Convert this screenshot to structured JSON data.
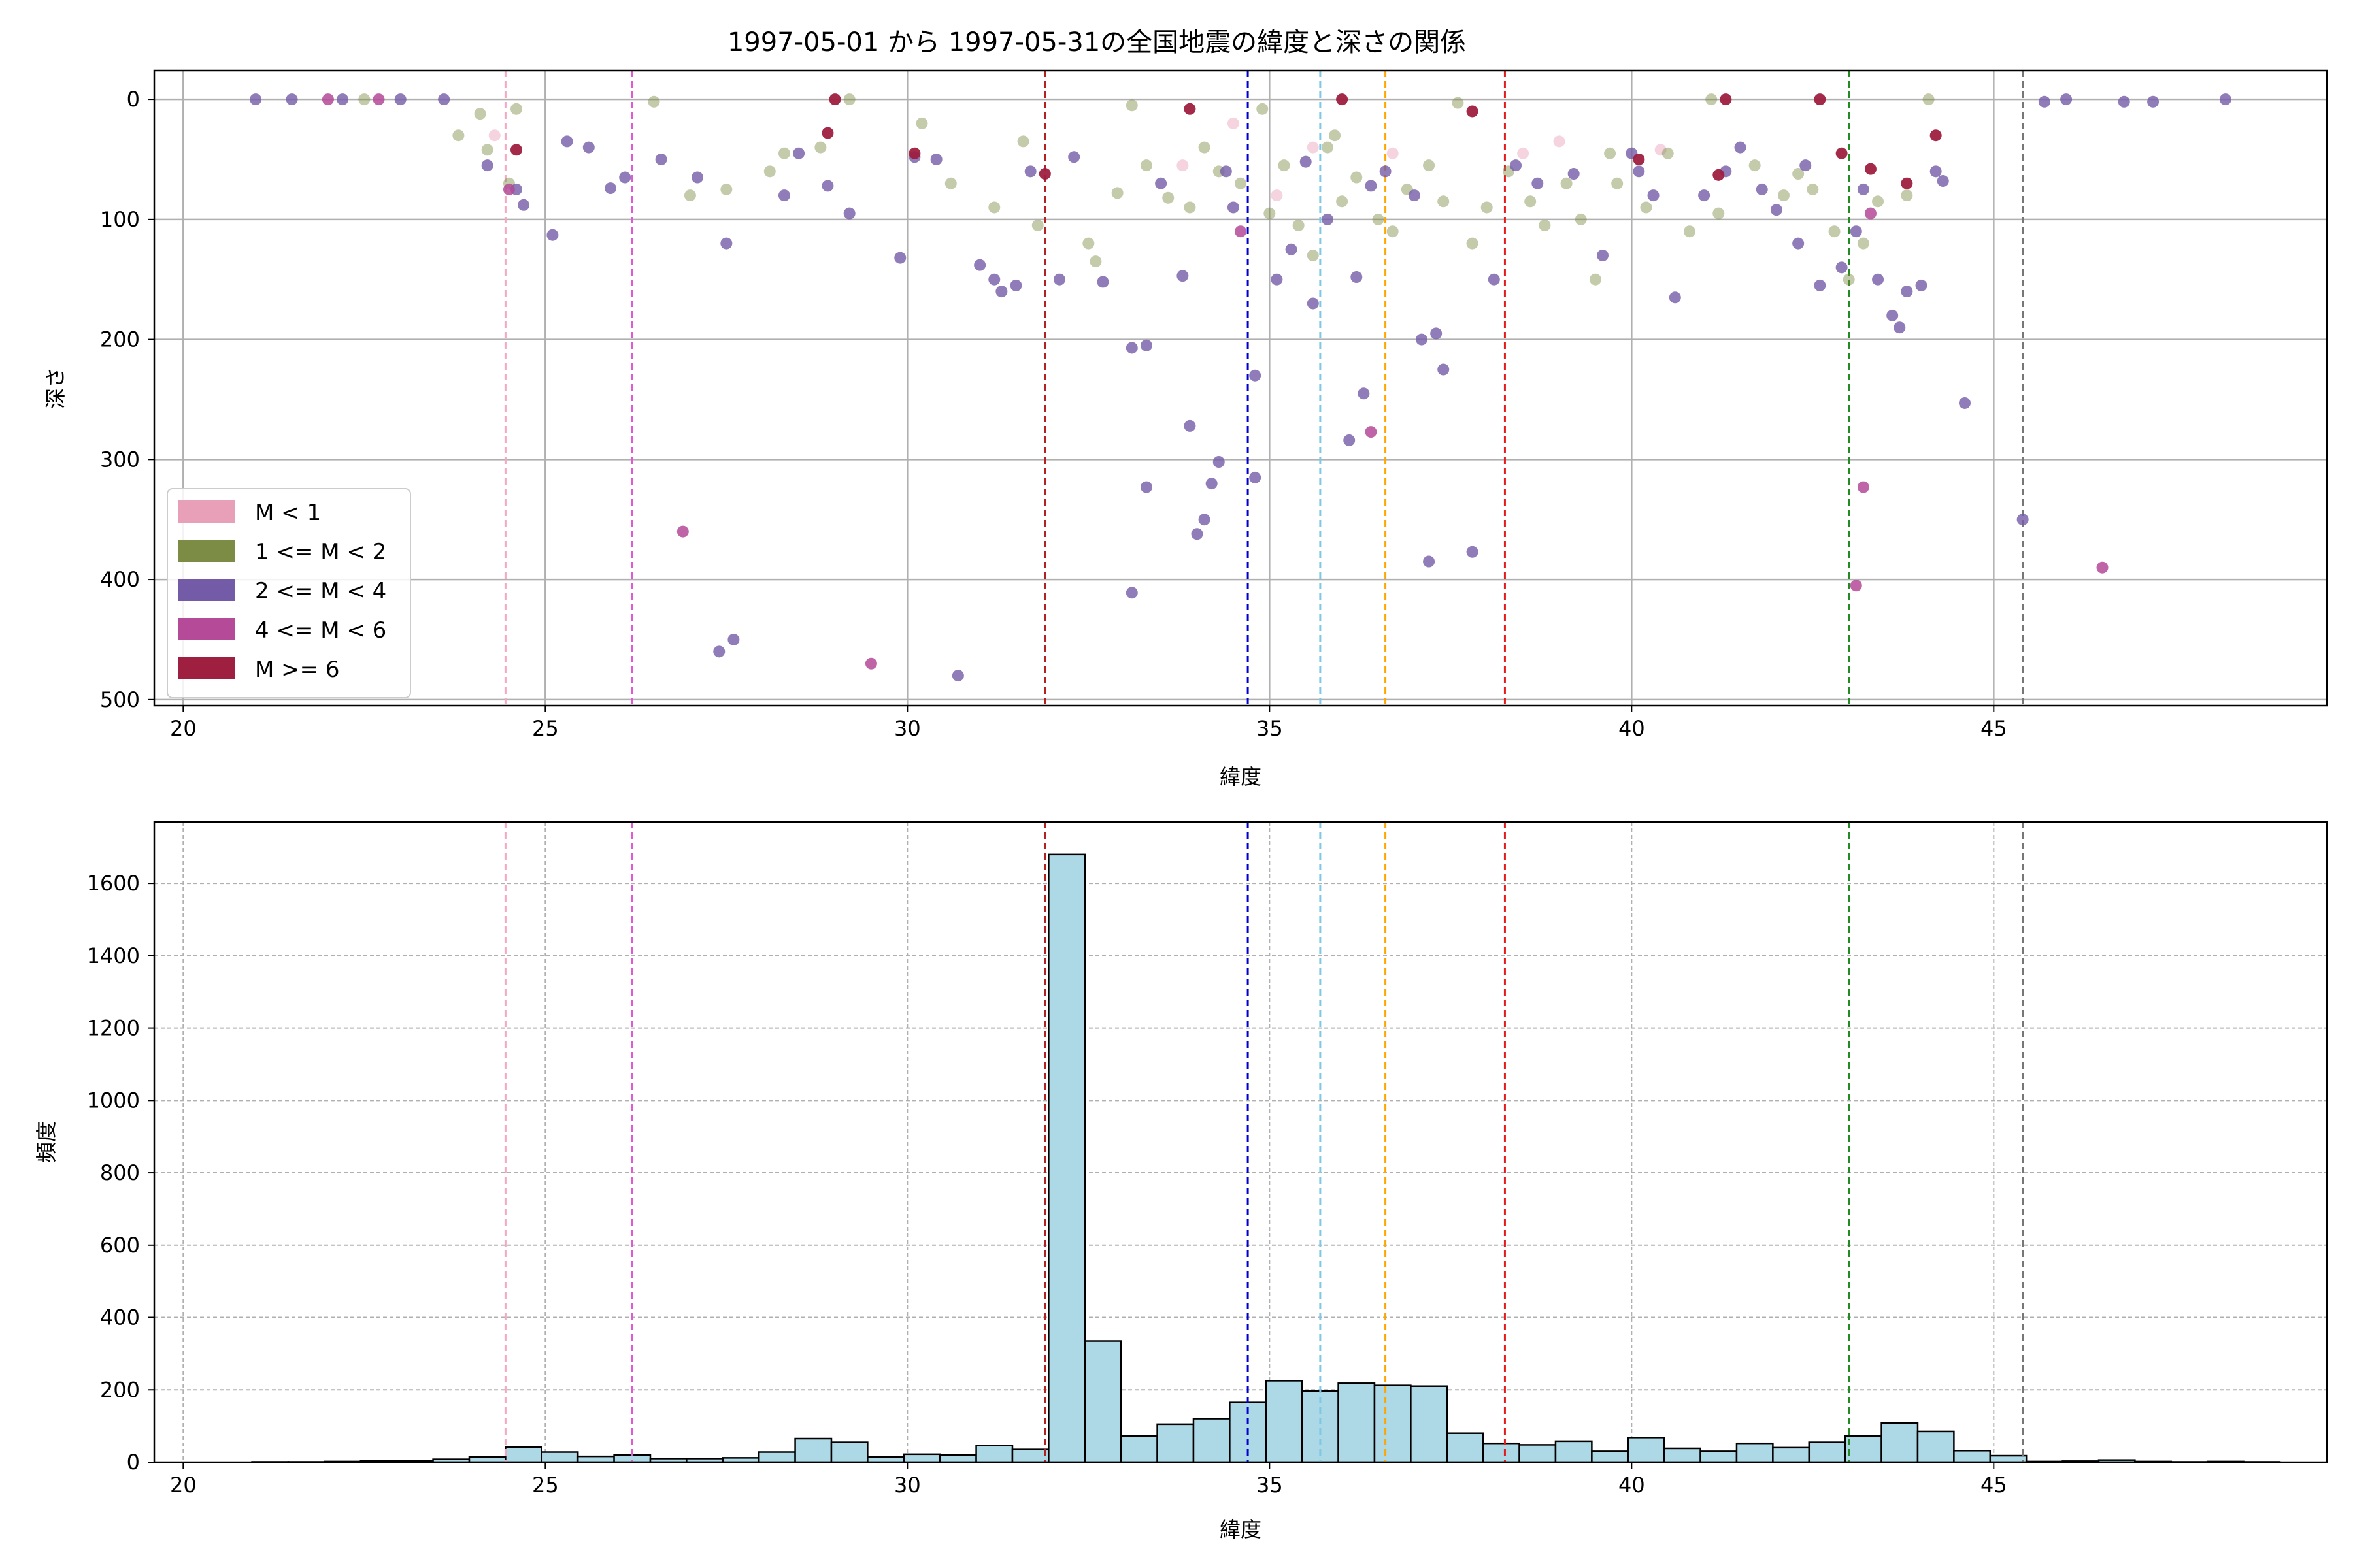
{
  "chart_data": [
    {
      "type": "scatter",
      "title": "1997-05-01 から 1997-05-31の全国地震の緯度と深さの関係",
      "xlabel": "緯度",
      "ylabel": "深さ",
      "xlim": [
        19.6,
        49.6
      ],
      "ylim": [
        505,
        -24
      ],
      "y_inverted": true,
      "x_ticks": [
        "20",
        "25",
        "30",
        "35",
        "40",
        "45"
      ],
      "y_ticks": [
        "0",
        "100",
        "200",
        "300",
        "400",
        "500"
      ],
      "grid": true,
      "legend_position": "lower-left",
      "legend": [
        {
          "label": "M < 1",
          "color": "#e8a0b8"
        },
        {
          "label": "1 <= M < 2",
          "color": "#7d8c44"
        },
        {
          "label": "2 <= M < 4",
          "color": "#735ba8"
        },
        {
          "label": "4 <= M < 6",
          "color": "#b44a98"
        },
        {
          "label": "M >= 6",
          "color": "#9e1f3f"
        }
      ],
      "vlines": [
        {
          "x": 24.45,
          "color": "#f4a9c1"
        },
        {
          "x": 26.2,
          "color": "#e05ad6"
        },
        {
          "x": 31.9,
          "color": "#b22222"
        },
        {
          "x": 34.7,
          "color": "#0000cd"
        },
        {
          "x": 35.7,
          "color": "#7ec8e3"
        },
        {
          "x": 36.6,
          "color": "#ffa500"
        },
        {
          "x": 38.25,
          "color": "#e41a1c"
        },
        {
          "x": 43.0,
          "color": "#228b22"
        },
        {
          "x": 45.4,
          "color": "#777777"
        }
      ],
      "series": [
        {
          "name": "M < 1",
          "points": [
            [
              24.3,
              30
            ],
            [
              35.6,
              40
            ],
            [
              39.0,
              35
            ],
            [
              33.8,
              55
            ],
            [
              36.7,
              45
            ],
            [
              34.5,
              20
            ],
            [
              38.5,
              45
            ],
            [
              40.4,
              42
            ],
            [
              35.1,
              80
            ]
          ]
        },
        {
          "name": "1 <= M < 2",
          "points": [
            [
              23.8,
              30
            ],
            [
              24.1,
              12
            ],
            [
              24.6,
              8
            ],
            [
              24.5,
              70
            ],
            [
              27.0,
              80
            ],
            [
              28.1,
              60
            ],
            [
              28.3,
              45
            ],
            [
              28.8,
              40
            ],
            [
              30.2,
              20
            ],
            [
              30.6,
              70
            ],
            [
              31.2,
              90
            ],
            [
              31.8,
              105
            ],
            [
              32.5,
              120
            ],
            [
              32.6,
              135
            ],
            [
              32.9,
              78
            ],
            [
              33.3,
              55
            ],
            [
              33.6,
              82
            ],
            [
              33.9,
              90
            ],
            [
              34.1,
              40
            ],
            [
              34.3,
              60
            ],
            [
              34.6,
              70
            ],
            [
              35.0,
              95
            ],
            [
              35.2,
              55
            ],
            [
              35.4,
              105
            ],
            [
              35.6,
              130
            ],
            [
              35.8,
              40
            ],
            [
              36.0,
              85
            ],
            [
              36.2,
              65
            ],
            [
              36.5,
              100
            ],
            [
              36.7,
              110
            ],
            [
              36.9,
              75
            ],
            [
              37.2,
              55
            ],
            [
              37.4,
              85
            ],
            [
              37.8,
              120
            ],
            [
              38.0,
              90
            ],
            [
              38.3,
              60
            ],
            [
              38.6,
              85
            ],
            [
              38.8,
              105
            ],
            [
              39.1,
              70
            ],
            [
              39.3,
              100
            ],
            [
              39.5,
              150
            ],
            [
              39.8,
              70
            ],
            [
              40.2,
              90
            ],
            [
              40.5,
              45
            ],
            [
              40.8,
              110
            ],
            [
              41.2,
              95
            ],
            [
              41.7,
              55
            ],
            [
              42.1,
              80
            ],
            [
              42.5,
              75
            ],
            [
              42.8,
              110
            ],
            [
              43.0,
              150
            ],
            [
              43.2,
              120
            ],
            [
              43.4,
              85
            ],
            [
              43.8,
              80
            ],
            [
              22.5,
              0
            ],
            [
              26.5,
              2
            ],
            [
              29.2,
              0
            ],
            [
              33.1,
              5
            ],
            [
              34.9,
              8
            ],
            [
              37.6,
              3
            ],
            [
              41.1,
              0
            ],
            [
              44.1,
              0
            ],
            [
              24.2,
              42
            ],
            [
              27.5,
              75
            ],
            [
              31.6,
              35
            ],
            [
              35.9,
              30
            ],
            [
              39.7,
              45
            ],
            [
              42.3,
              62
            ]
          ]
        },
        {
          "name": "2 <= M < 4",
          "points": [
            [
              21.0,
              0
            ],
            [
              21.5,
              0
            ],
            [
              22.2,
              0
            ],
            [
              23.0,
              0
            ],
            [
              23.6,
              0
            ],
            [
              24.6,
              75
            ],
            [
              24.7,
              88
            ],
            [
              25.1,
              113
            ],
            [
              25.3,
              35
            ],
            [
              25.6,
              40
            ],
            [
              25.9,
              74
            ],
            [
              26.1,
              65
            ],
            [
              27.1,
              65
            ],
            [
              27.5,
              120
            ],
            [
              27.4,
              460
            ],
            [
              27.6,
              450
            ],
            [
              28.3,
              80
            ],
            [
              28.9,
              72
            ],
            [
              29.2,
              95
            ],
            [
              29.9,
              132
            ],
            [
              30.1,
              48
            ],
            [
              30.7,
              480
            ],
            [
              31.0,
              138
            ],
            [
              31.2,
              150
            ],
            [
              31.3,
              160
            ],
            [
              31.5,
              155
            ],
            [
              31.7,
              60
            ],
            [
              32.1,
              150
            ],
            [
              32.7,
              152
            ],
            [
              33.1,
              207
            ],
            [
              33.3,
              205
            ],
            [
              33.3,
              323
            ],
            [
              33.1,
              411
            ],
            [
              33.9,
              272
            ],
            [
              33.8,
              147
            ],
            [
              34.0,
              362
            ],
            [
              34.1,
              350
            ],
            [
              34.3,
              302
            ],
            [
              34.2,
              320
            ],
            [
              34.5,
              90
            ],
            [
              34.8,
              230
            ],
            [
              34.8,
              315
            ],
            [
              35.1,
              150
            ],
            [
              35.3,
              125
            ],
            [
              35.6,
              170
            ],
            [
              35.8,
              100
            ],
            [
              36.1,
              284
            ],
            [
              36.2,
              148
            ],
            [
              36.3,
              245
            ],
            [
              36.6,
              60
            ],
            [
              37.1,
              200
            ],
            [
              37.2,
              385
            ],
            [
              37.3,
              195
            ],
            [
              37.4,
              225
            ],
            [
              37.8,
              377
            ],
            [
              38.1,
              150
            ],
            [
              38.7,
              70
            ],
            [
              39.6,
              130
            ],
            [
              40.1,
              60
            ],
            [
              40.3,
              80
            ],
            [
              40.6,
              165
            ],
            [
              41.0,
              80
            ],
            [
              41.3,
              60
            ],
            [
              41.8,
              75
            ],
            [
              42.0,
              92
            ],
            [
              42.3,
              120
            ],
            [
              42.6,
              155
            ],
            [
              42.9,
              140
            ],
            [
              43.1,
              110
            ],
            [
              43.4,
              150
            ],
            [
              43.6,
              180
            ],
            [
              43.7,
              190
            ],
            [
              43.8,
              160
            ],
            [
              44.0,
              155
            ],
            [
              44.2,
              60
            ],
            [
              44.6,
              253
            ],
            [
              45.4,
              350
            ],
            [
              45.7,
              2
            ],
            [
              46.0,
              0
            ],
            [
              46.8,
              2
            ],
            [
              47.2,
              2
            ],
            [
              48.2,
              0
            ],
            [
              24.2,
              55
            ],
            [
              26.6,
              50
            ],
            [
              28.5,
              45
            ],
            [
              30.4,
              50
            ],
            [
              32.3,
              48
            ],
            [
              33.5,
              70
            ],
            [
              34.4,
              60
            ],
            [
              35.5,
              52
            ],
            [
              36.4,
              72
            ],
            [
              37.0,
              80
            ],
            [
              38.4,
              55
            ],
            [
              39.2,
              62
            ],
            [
              40.0,
              45
            ],
            [
              41.5,
              40
            ],
            [
              42.4,
              55
            ],
            [
              43.2,
              75
            ],
            [
              44.3,
              68
            ]
          ]
        },
        {
          "name": "4 <= M < 6",
          "points": [
            [
              24.5,
              75
            ],
            [
              26.9,
              360
            ],
            [
              29.5,
              470
            ],
            [
              34.6,
              110
            ],
            [
              36.4,
              277
            ],
            [
              43.2,
              323
            ],
            [
              43.1,
              405
            ],
            [
              46.5,
              390
            ],
            [
              22.0,
              0
            ],
            [
              22.7,
              0
            ],
            [
              43.3,
              95
            ]
          ]
        },
        {
          "name": "M >= 6",
          "points": [
            [
              24.6,
              42
            ],
            [
              28.9,
              28
            ],
            [
              30.1,
              45
            ],
            [
              31.9,
              62
            ],
            [
              33.9,
              8
            ],
            [
              37.8,
              10
            ],
            [
              40.1,
              50
            ],
            [
              41.2,
              63
            ],
            [
              42.9,
              45
            ],
            [
              43.3,
              58
            ],
            [
              43.8,
              70
            ],
            [
              44.2,
              30
            ],
            [
              29.0,
              0
            ],
            [
              36.0,
              0
            ],
            [
              41.3,
              0
            ],
            [
              42.6,
              0
            ]
          ]
        }
      ]
    },
    {
      "type": "bar",
      "title": "",
      "xlabel": "緯度",
      "ylabel": "頻度",
      "xlim": [
        19.6,
        49.6
      ],
      "ylim": [
        0,
        1770
      ],
      "x_ticks": [
        "20",
        "25",
        "30",
        "35",
        "40",
        "45"
      ],
      "y_ticks": [
        "0",
        "200",
        "400",
        "600",
        "800",
        "1000",
        "1200",
        "1400",
        "1600"
      ],
      "grid": true,
      "bar_color": "#add8e6",
      "bins": {
        "start": 20.95,
        "width": 0.5
      },
      "values": [
        1,
        1,
        2,
        4,
        4,
        8,
        14,
        42,
        28,
        16,
        20,
        10,
        10,
        12,
        28,
        65,
        55,
        14,
        22,
        20,
        46,
        35,
        1680,
        335,
        72,
        105,
        120,
        165,
        225,
        197,
        218,
        212,
        210,
        80,
        52,
        48,
        58,
        30,
        68,
        38,
        30,
        52,
        40,
        55,
        72,
        108,
        85,
        32,
        18,
        2,
        3,
        6,
        2,
        1,
        2,
        1
      ],
      "vlines": [
        {
          "x": 24.45,
          "color": "#f4a9c1"
        },
        {
          "x": 26.2,
          "color": "#e05ad6"
        },
        {
          "x": 31.9,
          "color": "#b22222"
        },
        {
          "x": 34.7,
          "color": "#0000cd"
        },
        {
          "x": 35.7,
          "color": "#7ec8e3"
        },
        {
          "x": 36.6,
          "color": "#ffa500"
        },
        {
          "x": 38.25,
          "color": "#e41a1c"
        },
        {
          "x": 43.0,
          "color": "#228b22"
        },
        {
          "x": 45.4,
          "color": "#777777"
        }
      ]
    }
  ]
}
